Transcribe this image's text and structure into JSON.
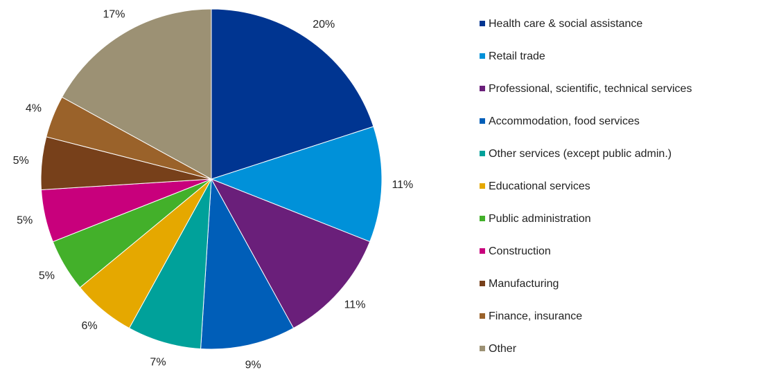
{
  "chart_data": {
    "type": "pie",
    "categories": [
      "Health care & social assistance",
      "Retail trade",
      "Professional, scientific, technical services",
      "Accommodation, food services",
      "Other services (except public admin.)",
      "Educational services",
      "Public administration",
      "Construction",
      "Manufacturing",
      "Finance, insurance",
      "Other"
    ],
    "values": [
      20,
      11,
      11,
      9,
      7,
      6,
      5,
      5,
      5,
      4,
      17
    ],
    "value_labels": [
      "20%",
      "11%",
      "11%",
      "9%",
      "7%",
      "6%",
      "5%",
      "5%",
      "5%",
      "4%",
      "17%"
    ],
    "colors": [
      "#003591",
      "#0091d9",
      "#6a1f7a",
      "#005eb8",
      "#00a19a",
      "#e5a800",
      "#43b02a",
      "#c8007c",
      "#77401a",
      "#9a622a",
      "#9c9174"
    ],
    "legend": "right"
  }
}
